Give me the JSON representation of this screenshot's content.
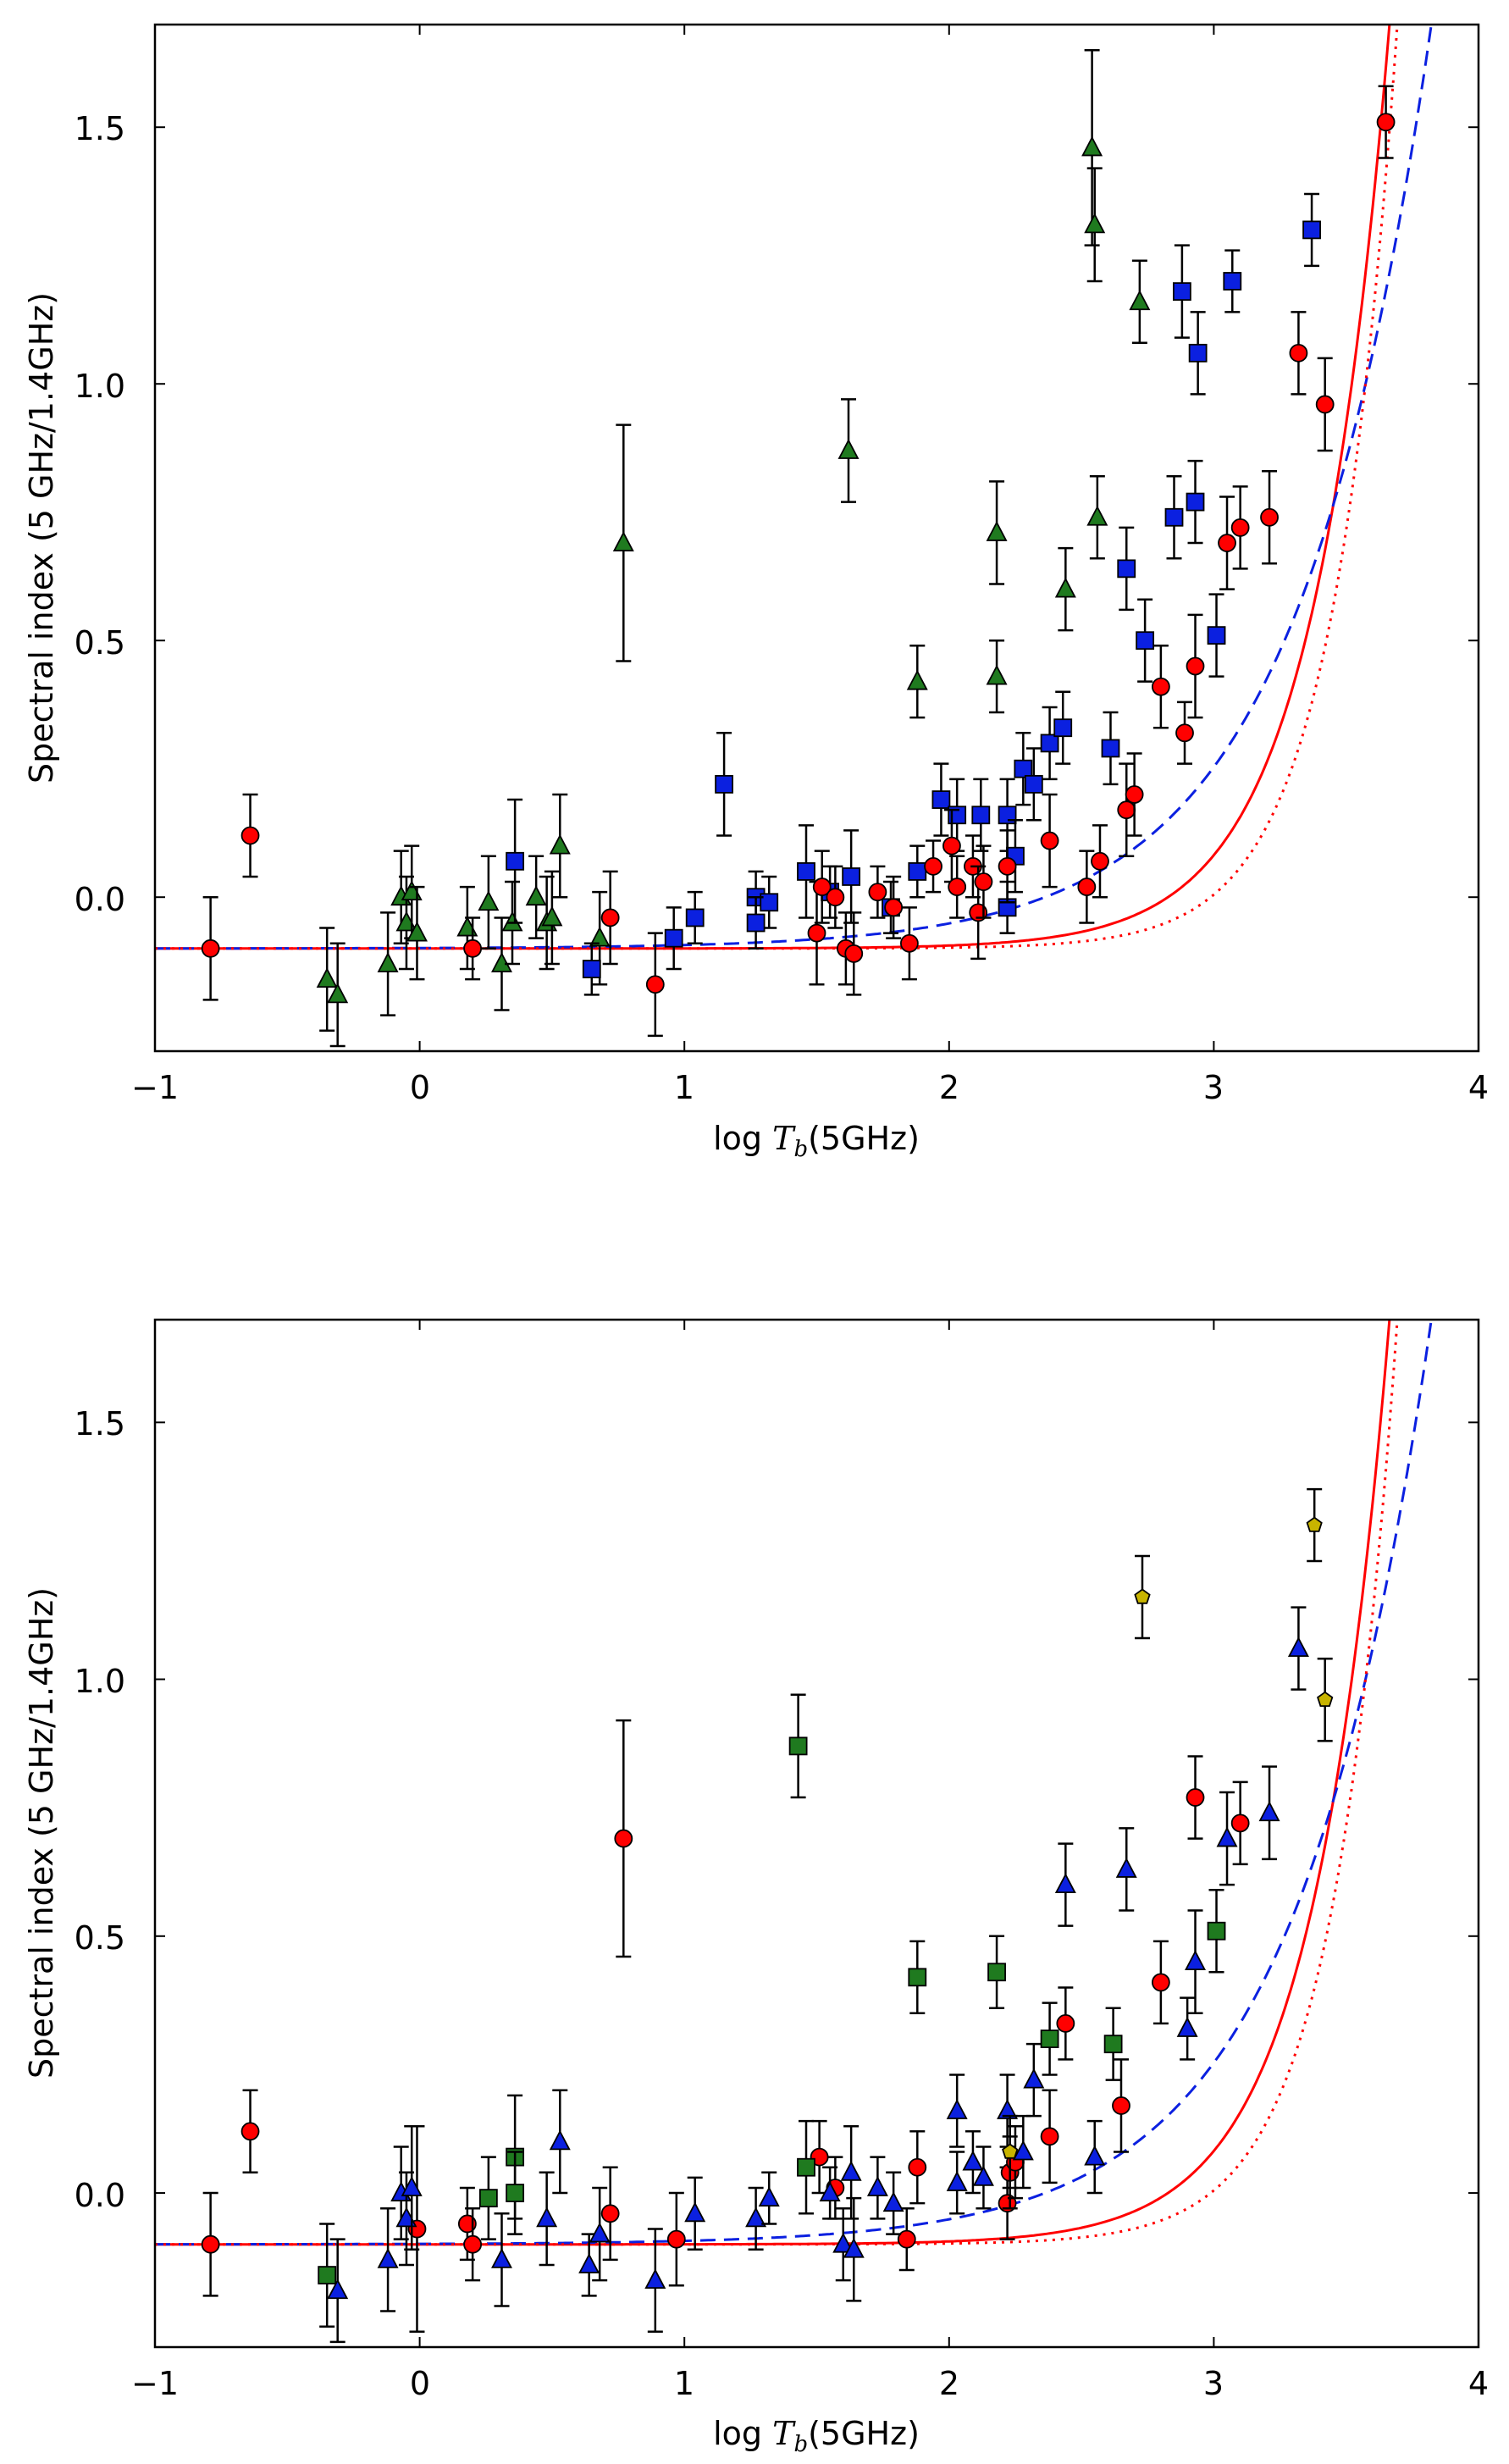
{
  "chart_data": [
    {
      "type": "scatter",
      "panel": "top",
      "xlabel_prefix": "log ",
      "xlabel_var": "T",
      "xlabel_sub": "b",
      "xlabel_suffix": "(5GHz)",
      "ylabel": "Spectral index (5 GHz/1.4GHz)",
      "xlim": [
        -1,
        4
      ],
      "ylim": [
        -0.3,
        1.7
      ],
      "xticks": [
        -1,
        0,
        1,
        2,
        3,
        4
      ],
      "xtick_labels": [
        "−1",
        "0",
        "1",
        "2",
        "3",
        "4"
      ],
      "yticks": [
        0.0,
        0.5,
        1.0,
        1.5
      ],
      "ytick_labels": [
        "0.0",
        "0.5",
        "1.0",
        "1.5"
      ],
      "grid": false,
      "series": [
        {
          "name": "green triangles",
          "marker": "triangle",
          "color": "#1f7a1f",
          "points": [
            [
              -0.35,
              -0.16,
              0.1
            ],
            [
              -0.31,
              -0.19,
              0.1
            ],
            [
              -0.12,
              -0.13,
              0.1
            ],
            [
              -0.07,
              0.0,
              0.09
            ],
            [
              -0.05,
              -0.05,
              0.09
            ],
            [
              -0.03,
              0.01,
              0.09
            ],
            [
              -0.01,
              -0.07,
              0.09
            ],
            [
              0.18,
              -0.06,
              0.08
            ],
            [
              0.26,
              -0.01,
              0.09
            ],
            [
              0.31,
              -0.13,
              0.09
            ],
            [
              0.35,
              -0.05,
              0.08
            ],
            [
              0.44,
              0.0,
              0.08
            ],
            [
              0.48,
              -0.05,
              0.09
            ],
            [
              0.5,
              -0.04,
              0.09
            ],
            [
              0.53,
              0.1,
              0.1
            ],
            [
              0.68,
              -0.08,
              0.09
            ],
            [
              0.77,
              0.69,
              0.23
            ],
            [
              1.62,
              0.87,
              0.1
            ],
            [
              1.88,
              0.42,
              0.07
            ],
            [
              2.18,
              0.71,
              0.1
            ],
            [
              2.18,
              0.43,
              0.07
            ],
            [
              2.44,
              0.6,
              0.08
            ],
            [
              2.54,
              1.46,
              0.19
            ],
            [
              2.55,
              1.31,
              0.11
            ],
            [
              2.56,
              0.74,
              0.08
            ],
            [
              2.72,
              1.16,
              0.08
            ]
          ]
        },
        {
          "name": "blue squares",
          "marker": "square",
          "color": "#0b20e0",
          "points": [
            [
              0.65,
              -0.14,
              0.05
            ],
            [
              0.36,
              0.07,
              0.12
            ],
            [
              0.96,
              -0.08,
              0.06
            ],
            [
              1.04,
              -0.04,
              0.05
            ],
            [
              1.15,
              0.22,
              0.1
            ],
            [
              1.27,
              0.0,
              0.05
            ],
            [
              1.32,
              -0.01,
              0.05
            ],
            [
              1.27,
              -0.05,
              0.05
            ],
            [
              1.46,
              0.05,
              0.09
            ],
            [
              1.55,
              0.01,
              0.05
            ],
            [
              1.63,
              0.04,
              0.09
            ],
            [
              1.78,
              -0.02,
              0.05
            ],
            [
              1.88,
              0.05,
              0.05
            ],
            [
              1.97,
              0.19,
              0.07
            ],
            [
              2.03,
              0.16,
              0.07
            ],
            [
              2.12,
              0.16,
              0.07
            ],
            [
              2.22,
              0.16,
              0.07
            ],
            [
              2.22,
              -0.02,
              0.05
            ],
            [
              2.25,
              0.08,
              0.07
            ],
            [
              2.28,
              0.25,
              0.07
            ],
            [
              2.32,
              0.22,
              0.07
            ],
            [
              2.38,
              0.3,
              0.07
            ],
            [
              2.43,
              0.33,
              0.07
            ],
            [
              2.61,
              0.29,
              0.07
            ],
            [
              2.67,
              0.64,
              0.08
            ],
            [
              2.74,
              0.5,
              0.08
            ],
            [
              2.85,
              0.74,
              0.08
            ],
            [
              2.93,
              0.77,
              0.08
            ],
            [
              2.88,
              1.18,
              0.09
            ],
            [
              2.94,
              1.06,
              0.08
            ],
            [
              3.01,
              0.51,
              0.08
            ],
            [
              3.07,
              1.2,
              0.06
            ],
            [
              3.37,
              1.3,
              0.07
            ]
          ]
        },
        {
          "name": "red circles",
          "marker": "circle",
          "color": "#ff0000",
          "points": [
            [
              -0.79,
              -0.1,
              0.1
            ],
            [
              -0.64,
              0.12,
              0.08
            ],
            [
              0.2,
              -0.1,
              0.06
            ],
            [
              0.72,
              -0.04,
              0.09
            ],
            [
              0.89,
              -0.17,
              0.1
            ],
            [
              1.5,
              -0.07,
              0.1
            ],
            [
              1.52,
              0.02,
              0.07
            ],
            [
              1.57,
              0.0,
              0.06
            ],
            [
              1.61,
              -0.1,
              0.07
            ],
            [
              1.64,
              -0.11,
              0.08
            ],
            [
              1.73,
              0.01,
              0.05
            ],
            [
              1.79,
              -0.02,
              0.06
            ],
            [
              1.85,
              -0.09,
              0.07
            ],
            [
              1.94,
              0.06,
              0.05
            ],
            [
              2.01,
              0.1,
              0.07
            ],
            [
              2.03,
              0.02,
              0.06
            ],
            [
              2.09,
              0.06,
              0.06
            ],
            [
              2.11,
              -0.03,
              0.09
            ],
            [
              2.13,
              0.03,
              0.07
            ],
            [
              2.22,
              0.06,
              0.07
            ],
            [
              2.38,
              0.11,
              0.09
            ],
            [
              2.52,
              0.02,
              0.07
            ],
            [
              2.57,
              0.07,
              0.07
            ],
            [
              2.67,
              0.17,
              0.09
            ],
            [
              2.7,
              0.2,
              0.08
            ],
            [
              2.8,
              0.41,
              0.08
            ],
            [
              2.89,
              0.32,
              0.06
            ],
            [
              2.93,
              0.45,
              0.1
            ],
            [
              3.05,
              0.69,
              0.09
            ],
            [
              3.1,
              0.72,
              0.08
            ],
            [
              3.21,
              0.74,
              0.09
            ],
            [
              3.32,
              1.06,
              0.08
            ],
            [
              3.42,
              0.96,
              0.09
            ],
            [
              3.65,
              1.51,
              0.07
            ]
          ]
        }
      ],
      "curves": [
        {
          "name": "solid red fit",
          "color": "#ff0000",
          "style": "solid",
          "equation": "-0.1 + 0.00000575*10^(1.5*x)"
        },
        {
          "name": "dashed blue fit",
          "color": "#0b20e0",
          "style": "dashed",
          "equation": "-0.1 + 0.00093*10^(0.86*x)"
        },
        {
          "name": "dotted red fit",
          "color": "#ff0000",
          "style": "dotted",
          "equation": "-0.1 + 0.00000048*10^(1.78*x)"
        }
      ]
    },
    {
      "type": "scatter",
      "panel": "bottom",
      "xlabel_prefix": "log ",
      "xlabel_var": "T",
      "xlabel_sub": "b",
      "xlabel_suffix": "(5GHz)",
      "ylabel": "Spectral index (5 GHz/1.4GHz)",
      "xlim": [
        -1,
        4
      ],
      "ylim": [
        -0.3,
        1.7
      ],
      "xticks": [
        -1,
        0,
        1,
        2,
        3,
        4
      ],
      "xtick_labels": [
        "−1",
        "0",
        "1",
        "2",
        "3",
        "4"
      ],
      "yticks": [
        0.0,
        0.5,
        1.0,
        1.5
      ],
      "ytick_labels": [
        "0.0",
        "0.5",
        "1.0",
        "1.5"
      ],
      "grid": false,
      "series": [
        {
          "name": "red circles",
          "marker": "circle",
          "color": "#ff0000",
          "points": [
            [
              -0.79,
              -0.1,
              0.1
            ],
            [
              -0.64,
              0.12,
              0.08
            ],
            [
              -0.01,
              -0.07,
              0.2
            ],
            [
              0.18,
              -0.06,
              0.07
            ],
            [
              0.2,
              -0.1,
              0.07
            ],
            [
              0.72,
              -0.04,
              0.09
            ],
            [
              0.77,
              0.69,
              0.23
            ],
            [
              0.97,
              -0.09,
              0.09
            ],
            [
              1.51,
              0.07,
              0.07
            ],
            [
              1.57,
              0.01,
              0.06
            ],
            [
              1.84,
              -0.09,
              0.06
            ],
            [
              1.88,
              0.05,
              0.07
            ],
            [
              2.22,
              -0.02,
              0.07
            ],
            [
              2.23,
              0.04,
              0.07
            ],
            [
              2.25,
              0.06,
              0.07
            ],
            [
              2.38,
              0.11,
              0.09
            ],
            [
              2.44,
              0.33,
              0.07
            ],
            [
              2.65,
              0.17,
              0.09
            ],
            [
              2.8,
              0.41,
              0.08
            ],
            [
              2.93,
              0.77,
              0.08
            ],
            [
              3.1,
              0.72,
              0.08
            ]
          ]
        },
        {
          "name": "blue triangles",
          "marker": "triangle",
          "color": "#0b20e0",
          "points": [
            [
              -0.31,
              -0.19,
              0.1
            ],
            [
              -0.12,
              -0.13,
              0.1
            ],
            [
              -0.07,
              0.0,
              0.09
            ],
            [
              -0.05,
              -0.05,
              0.09
            ],
            [
              -0.03,
              0.01,
              0.12
            ],
            [
              0.31,
              -0.13,
              0.09
            ],
            [
              0.48,
              -0.05,
              0.09
            ],
            [
              0.53,
              0.1,
              0.1
            ],
            [
              0.64,
              -0.14,
              0.06
            ],
            [
              0.68,
              -0.08,
              0.09
            ],
            [
              0.89,
              -0.17,
              0.1
            ],
            [
              1.04,
              -0.04,
              0.07
            ],
            [
              1.27,
              -0.05,
              0.06
            ],
            [
              1.32,
              -0.01,
              0.05
            ],
            [
              1.55,
              0.0,
              0.05
            ],
            [
              1.6,
              -0.1,
              0.07
            ],
            [
              1.63,
              0.04,
              0.09
            ],
            [
              1.64,
              -0.11,
              0.1
            ],
            [
              1.73,
              0.01,
              0.06
            ],
            [
              1.79,
              -0.02,
              0.06
            ],
            [
              2.03,
              0.16,
              0.07
            ],
            [
              2.03,
              0.02,
              0.06
            ],
            [
              2.09,
              0.06,
              0.06
            ],
            [
              2.13,
              0.03,
              0.06
            ],
            [
              2.22,
              0.16,
              0.07
            ],
            [
              2.28,
              0.08,
              0.07
            ],
            [
              2.32,
              0.22,
              0.07
            ],
            [
              2.44,
              0.6,
              0.08
            ],
            [
              2.55,
              0.07,
              0.07
            ],
            [
              2.67,
              0.63,
              0.08
            ],
            [
              2.93,
              0.45,
              0.1
            ],
            [
              2.9,
              0.32,
              0.06
            ],
            [
              3.05,
              0.69,
              0.09
            ],
            [
              3.21,
              0.74,
              0.09
            ],
            [
              3.32,
              1.06,
              0.08
            ]
          ]
        },
        {
          "name": "green squares",
          "marker": "square",
          "color": "#1f7a1f",
          "points": [
            [
              -0.35,
              -0.16,
              0.1
            ],
            [
              0.26,
              -0.01,
              0.08
            ],
            [
              0.36,
              0.07,
              0.12
            ],
            [
              0.36,
              0.0,
              0.08
            ],
            [
              1.46,
              0.05,
              0.09
            ],
            [
              1.43,
              0.87,
              0.1
            ],
            [
              1.88,
              0.42,
              0.07
            ],
            [
              2.18,
              0.43,
              0.07
            ],
            [
              2.38,
              0.3,
              0.07
            ],
            [
              2.62,
              0.29,
              0.07
            ],
            [
              3.01,
              0.51,
              0.08
            ]
          ]
        },
        {
          "name": "yellow pentagons",
          "marker": "pentagon",
          "color": "#c8b400",
          "points": [
            [
              2.23,
              0.08,
              0.07
            ],
            [
              2.73,
              1.16,
              0.08
            ],
            [
              3.38,
              1.3,
              0.07
            ],
            [
              3.42,
              0.96,
              0.08
            ]
          ]
        }
      ],
      "curves": [
        {
          "name": "solid red fit",
          "color": "#ff0000",
          "style": "solid",
          "equation": "-0.1 + 0.00000575*10^(1.5*x)"
        },
        {
          "name": "dashed blue fit",
          "color": "#0b20e0",
          "style": "dashed",
          "equation": "-0.1 + 0.00093*10^(0.86*x)"
        },
        {
          "name": "dotted red fit",
          "color": "#ff0000",
          "style": "dotted",
          "equation": "-0.1 + 0.00000048*10^(1.78*x)"
        }
      ]
    }
  ]
}
